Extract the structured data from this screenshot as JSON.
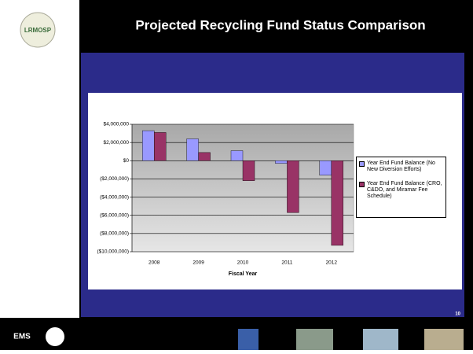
{
  "slide": {
    "title": "Projected Recycling Fund Status Comparison",
    "page_number": "10",
    "logo": "LRMOSP",
    "footer_logo": "EMS"
  },
  "chart_data": {
    "type": "bar",
    "categories": [
      "2008",
      "2009",
      "2010",
      "2011",
      "2012"
    ],
    "series": [
      {
        "name": "Year End Fund Balance (No New Diversion Efforts)",
        "color": "#9999ff",
        "values": [
          3300000,
          2400000,
          1100000,
          -300000,
          -1600000
        ]
      },
      {
        "name": "Year End Fund Balance (CRO, C&DO, and Miramar Fee Schedule)",
        "color": "#993366",
        "values": [
          3100000,
          900000,
          -2200000,
          -5700000,
          -9300000
        ]
      }
    ],
    "xlabel": "Fiscal Year",
    "ylim": [
      -10000000,
      4000000
    ],
    "yticks": [
      {
        "value": -10000000,
        "label": "($10,000,000)"
      },
      {
        "value": -8000000,
        "label": "($8,000,000)"
      },
      {
        "value": -6000000,
        "label": "($6,000,000)"
      },
      {
        "value": -4000000,
        "label": "($4,000,000)"
      },
      {
        "value": -2000000,
        "label": "($2,000,000)"
      },
      {
        "value": 0,
        "label": "$0"
      },
      {
        "value": 2000000,
        "label": "$2,000,000"
      },
      {
        "value": 4000000,
        "label": "$4,000,000"
      }
    ],
    "grid": true,
    "legend": "right"
  }
}
